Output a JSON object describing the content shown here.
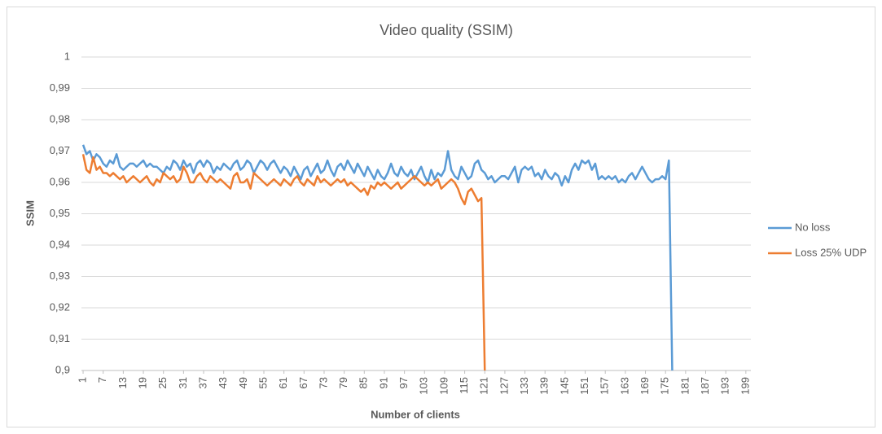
{
  "chart_data": {
    "type": "line",
    "title": "Video quality (SSIM)",
    "x_label": "Number of clients",
    "y_label": "SSIM",
    "x": [
      1,
      2,
      3,
      4,
      5,
      6,
      7,
      8,
      9,
      10,
      11,
      12,
      13,
      14,
      15,
      16,
      17,
      18,
      19,
      20,
      21,
      22,
      23,
      24,
      25,
      26,
      27,
      28,
      29,
      30,
      31,
      32,
      33,
      34,
      35,
      36,
      37,
      38,
      39,
      40,
      41,
      42,
      43,
      44,
      45,
      46,
      47,
      48,
      49,
      50,
      51,
      52,
      53,
      54,
      55,
      56,
      57,
      58,
      59,
      60,
      61,
      62,
      63,
      64,
      65,
      66,
      67,
      68,
      69,
      70,
      71,
      72,
      73,
      74,
      75,
      76,
      77,
      78,
      79,
      80,
      81,
      82,
      83,
      84,
      85,
      86,
      87,
      88,
      89,
      90,
      91,
      92,
      93,
      94,
      95,
      96,
      97,
      98,
      99,
      100,
      101,
      102,
      103,
      104,
      105,
      106,
      107,
      108,
      109,
      110,
      111,
      112,
      113,
      114,
      115,
      116,
      117,
      118,
      119,
      120,
      121,
      122,
      123,
      124,
      125,
      126,
      127,
      128,
      129,
      130,
      131,
      132,
      133,
      134,
      135,
      136,
      137,
      138,
      139,
      140,
      141,
      142,
      143,
      144,
      145,
      146,
      147,
      148,
      149,
      150,
      151,
      152,
      153,
      154,
      155,
      156,
      157,
      158,
      159,
      160,
      161,
      162,
      163,
      164,
      165,
      166,
      167,
      168,
      169,
      170,
      171,
      172,
      173,
      174,
      175,
      176,
      177,
      178,
      179,
      180,
      181,
      182,
      183,
      184,
      185,
      186,
      187,
      188,
      189,
      190,
      191,
      192,
      193,
      194,
      195,
      196,
      197,
      198,
      199,
      200
    ],
    "series": [
      {
        "name": "No loss",
        "color": "#5b9bd5",
        "values": [
          0.972,
          0.969,
          0.97,
          0.967,
          0.969,
          0.968,
          0.966,
          0.965,
          0.967,
          0.966,
          0.969,
          0.965,
          0.964,
          0.965,
          0.966,
          0.966,
          0.965,
          0.966,
          0.967,
          0.965,
          0.966,
          0.965,
          0.965,
          0.964,
          0.963,
          0.965,
          0.964,
          0.967,
          0.966,
          0.964,
          0.967,
          0.965,
          0.966,
          0.963,
          0.966,
          0.967,
          0.965,
          0.967,
          0.966,
          0.963,
          0.965,
          0.964,
          0.966,
          0.965,
          0.964,
          0.966,
          0.967,
          0.964,
          0.965,
          0.967,
          0.966,
          0.963,
          0.965,
          0.967,
          0.966,
          0.964,
          0.966,
          0.967,
          0.965,
          0.963,
          0.965,
          0.964,
          0.962,
          0.965,
          0.963,
          0.961,
          0.964,
          0.965,
          0.962,
          0.964,
          0.966,
          0.963,
          0.964,
          0.967,
          0.964,
          0.962,
          0.965,
          0.966,
          0.964,
          0.967,
          0.965,
          0.963,
          0.966,
          0.964,
          0.962,
          0.965,
          0.963,
          0.961,
          0.964,
          0.962,
          0.961,
          0.963,
          0.966,
          0.963,
          0.962,
          0.965,
          0.963,
          0.962,
          0.964,
          0.961,
          0.963,
          0.965,
          0.962,
          0.96,
          0.964,
          0.961,
          0.963,
          0.962,
          0.964,
          0.97,
          0.964,
          0.962,
          0.961,
          0.965,
          0.963,
          0.961,
          0.962,
          0.966,
          0.967,
          0.964,
          0.963,
          0.961,
          0.962,
          0.96,
          0.961,
          0.962,
          0.962,
          0.961,
          0.963,
          0.965,
          0.96,
          0.964,
          0.965,
          0.964,
          0.965,
          0.962,
          0.963,
          0.961,
          0.964,
          0.962,
          0.961,
          0.963,
          0.962,
          0.959,
          0.962,
          0.96,
          0.964,
          0.966,
          0.964,
          0.967,
          0.966,
          0.967,
          0.964,
          0.966,
          0.961,
          0.962,
          0.961,
          0.962,
          0.961,
          0.962,
          0.96,
          0.961,
          0.96,
          0.962,
          0.963,
          0.961,
          0.963,
          0.965,
          0.963,
          0.961,
          0.96,
          0.961,
          0.961,
          0.962,
          0.961,
          0.967,
          0.9,
          null,
          null,
          null,
          null,
          null,
          null,
          null,
          null,
          null,
          null,
          null,
          null,
          null,
          null,
          null,
          null,
          null,
          null,
          null,
          null,
          null,
          null,
          null
        ]
      },
      {
        "name": "Loss 25% UDP",
        "color": "#ed7d31",
        "values": [
          0.969,
          0.964,
          0.963,
          0.968,
          0.964,
          0.965,
          0.963,
          0.963,
          0.962,
          0.963,
          0.962,
          0.961,
          0.962,
          0.96,
          0.961,
          0.962,
          0.961,
          0.96,
          0.961,
          0.962,
          0.96,
          0.959,
          0.961,
          0.96,
          0.963,
          0.962,
          0.961,
          0.962,
          0.96,
          0.961,
          0.965,
          0.963,
          0.96,
          0.96,
          0.962,
          0.963,
          0.961,
          0.96,
          0.962,
          0.961,
          0.96,
          0.961,
          0.96,
          0.959,
          0.958,
          0.962,
          0.963,
          0.96,
          0.96,
          0.961,
          0.958,
          0.963,
          0.962,
          0.961,
          0.96,
          0.959,
          0.96,
          0.961,
          0.96,
          0.959,
          0.961,
          0.96,
          0.959,
          0.961,
          0.962,
          0.96,
          0.959,
          0.961,
          0.96,
          0.959,
          0.962,
          0.96,
          0.961,
          0.96,
          0.959,
          0.96,
          0.961,
          0.96,
          0.961,
          0.959,
          0.96,
          0.959,
          0.958,
          0.957,
          0.958,
          0.956,
          0.959,
          0.958,
          0.96,
          0.959,
          0.96,
          0.959,
          0.958,
          0.959,
          0.96,
          0.958,
          0.959,
          0.96,
          0.961,
          0.962,
          0.961,
          0.96,
          0.959,
          0.96,
          0.959,
          0.96,
          0.961,
          0.958,
          0.959,
          0.96,
          0.961,
          0.96,
          0.958,
          0.955,
          0.953,
          0.957,
          0.958,
          0.956,
          0.954,
          0.955,
          0.9,
          null,
          null,
          null,
          null,
          null,
          null,
          null,
          null,
          null,
          null,
          null,
          null,
          null,
          null,
          null,
          null,
          null,
          null,
          null,
          null,
          null,
          null,
          null,
          null,
          null,
          null,
          null,
          null,
          null,
          null,
          null,
          null,
          null,
          null,
          null,
          null,
          null,
          null,
          null,
          null,
          null,
          null,
          null,
          null,
          null,
          null,
          null,
          null,
          null,
          null,
          null,
          null,
          null,
          null,
          null,
          null,
          null,
          null,
          null,
          null,
          null,
          null,
          null,
          null,
          null,
          null,
          null,
          null,
          null,
          null,
          null,
          null,
          null,
          null,
          null,
          null,
          null,
          null,
          null
        ]
      }
    ],
    "xlim": [
      1,
      200
    ],
    "xticks": [
      1,
      7,
      13,
      19,
      25,
      31,
      37,
      43,
      49,
      55,
      61,
      67,
      73,
      79,
      85,
      91,
      97,
      103,
      109,
      115,
      121,
      127,
      133,
      139,
      145,
      151,
      157,
      163,
      169,
      175,
      181,
      187,
      193,
      199
    ],
    "ylim": [
      0.9,
      1
    ],
    "yticks": [
      {
        "value": 0.9,
        "label": "0,9"
      },
      {
        "value": 0.91,
        "label": "0,91"
      },
      {
        "value": 0.92,
        "label": "0,92"
      },
      {
        "value": 0.93,
        "label": "0,93"
      },
      {
        "value": 0.94,
        "label": "0,94"
      },
      {
        "value": 0.95,
        "label": "0,95"
      },
      {
        "value": 0.96,
        "label": "0,96"
      },
      {
        "value": 0.97,
        "label": "0,97"
      },
      {
        "value": 0.98,
        "label": "0,98"
      },
      {
        "value": 0.99,
        "label": "0,99"
      },
      1
    ],
    "grid": true,
    "legend": "right"
  }
}
